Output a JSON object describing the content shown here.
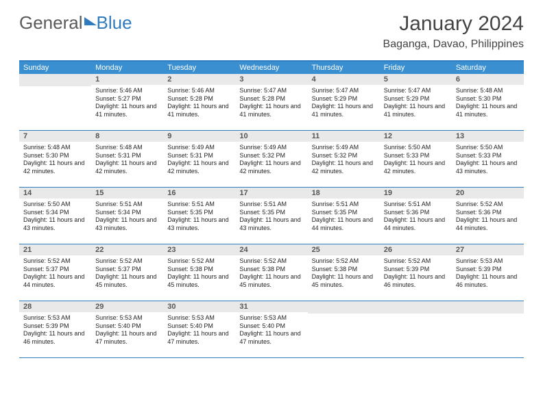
{
  "brand": {
    "part1": "General",
    "part2": "Blue"
  },
  "title": "January 2024",
  "location": "Baganga, Davao, Philippines",
  "daysOfWeek": [
    "Sunday",
    "Monday",
    "Tuesday",
    "Wednesday",
    "Thursday",
    "Friday",
    "Saturday"
  ],
  "colors": {
    "headerBar": "#3a8fd0",
    "ruleLine": "#2f7bbf",
    "dayNumBg": "#e9e9e9",
    "textDark": "#222222"
  },
  "weeks": [
    [
      {
        "n": "",
        "sunrise": "",
        "sunset": "",
        "daylight": ""
      },
      {
        "n": "1",
        "sunrise": "Sunrise: 5:46 AM",
        "sunset": "Sunset: 5:27 PM",
        "daylight": "Daylight: 11 hours and 41 minutes."
      },
      {
        "n": "2",
        "sunrise": "Sunrise: 5:46 AM",
        "sunset": "Sunset: 5:28 PM",
        "daylight": "Daylight: 11 hours and 41 minutes."
      },
      {
        "n": "3",
        "sunrise": "Sunrise: 5:47 AM",
        "sunset": "Sunset: 5:28 PM",
        "daylight": "Daylight: 11 hours and 41 minutes."
      },
      {
        "n": "4",
        "sunrise": "Sunrise: 5:47 AM",
        "sunset": "Sunset: 5:29 PM",
        "daylight": "Daylight: 11 hours and 41 minutes."
      },
      {
        "n": "5",
        "sunrise": "Sunrise: 5:47 AM",
        "sunset": "Sunset: 5:29 PM",
        "daylight": "Daylight: 11 hours and 41 minutes."
      },
      {
        "n": "6",
        "sunrise": "Sunrise: 5:48 AM",
        "sunset": "Sunset: 5:30 PM",
        "daylight": "Daylight: 11 hours and 41 minutes."
      }
    ],
    [
      {
        "n": "7",
        "sunrise": "Sunrise: 5:48 AM",
        "sunset": "Sunset: 5:30 PM",
        "daylight": "Daylight: 11 hours and 42 minutes."
      },
      {
        "n": "8",
        "sunrise": "Sunrise: 5:48 AM",
        "sunset": "Sunset: 5:31 PM",
        "daylight": "Daylight: 11 hours and 42 minutes."
      },
      {
        "n": "9",
        "sunrise": "Sunrise: 5:49 AM",
        "sunset": "Sunset: 5:31 PM",
        "daylight": "Daylight: 11 hours and 42 minutes."
      },
      {
        "n": "10",
        "sunrise": "Sunrise: 5:49 AM",
        "sunset": "Sunset: 5:32 PM",
        "daylight": "Daylight: 11 hours and 42 minutes."
      },
      {
        "n": "11",
        "sunrise": "Sunrise: 5:49 AM",
        "sunset": "Sunset: 5:32 PM",
        "daylight": "Daylight: 11 hours and 42 minutes."
      },
      {
        "n": "12",
        "sunrise": "Sunrise: 5:50 AM",
        "sunset": "Sunset: 5:33 PM",
        "daylight": "Daylight: 11 hours and 42 minutes."
      },
      {
        "n": "13",
        "sunrise": "Sunrise: 5:50 AM",
        "sunset": "Sunset: 5:33 PM",
        "daylight": "Daylight: 11 hours and 43 minutes."
      }
    ],
    [
      {
        "n": "14",
        "sunrise": "Sunrise: 5:50 AM",
        "sunset": "Sunset: 5:34 PM",
        "daylight": "Daylight: 11 hours and 43 minutes."
      },
      {
        "n": "15",
        "sunrise": "Sunrise: 5:51 AM",
        "sunset": "Sunset: 5:34 PM",
        "daylight": "Daylight: 11 hours and 43 minutes."
      },
      {
        "n": "16",
        "sunrise": "Sunrise: 5:51 AM",
        "sunset": "Sunset: 5:35 PM",
        "daylight": "Daylight: 11 hours and 43 minutes."
      },
      {
        "n": "17",
        "sunrise": "Sunrise: 5:51 AM",
        "sunset": "Sunset: 5:35 PM",
        "daylight": "Daylight: 11 hours and 43 minutes."
      },
      {
        "n": "18",
        "sunrise": "Sunrise: 5:51 AM",
        "sunset": "Sunset: 5:35 PM",
        "daylight": "Daylight: 11 hours and 44 minutes."
      },
      {
        "n": "19",
        "sunrise": "Sunrise: 5:51 AM",
        "sunset": "Sunset: 5:36 PM",
        "daylight": "Daylight: 11 hours and 44 minutes."
      },
      {
        "n": "20",
        "sunrise": "Sunrise: 5:52 AM",
        "sunset": "Sunset: 5:36 PM",
        "daylight": "Daylight: 11 hours and 44 minutes."
      }
    ],
    [
      {
        "n": "21",
        "sunrise": "Sunrise: 5:52 AM",
        "sunset": "Sunset: 5:37 PM",
        "daylight": "Daylight: 11 hours and 44 minutes."
      },
      {
        "n": "22",
        "sunrise": "Sunrise: 5:52 AM",
        "sunset": "Sunset: 5:37 PM",
        "daylight": "Daylight: 11 hours and 45 minutes."
      },
      {
        "n": "23",
        "sunrise": "Sunrise: 5:52 AM",
        "sunset": "Sunset: 5:38 PM",
        "daylight": "Daylight: 11 hours and 45 minutes."
      },
      {
        "n": "24",
        "sunrise": "Sunrise: 5:52 AM",
        "sunset": "Sunset: 5:38 PM",
        "daylight": "Daylight: 11 hours and 45 minutes."
      },
      {
        "n": "25",
        "sunrise": "Sunrise: 5:52 AM",
        "sunset": "Sunset: 5:38 PM",
        "daylight": "Daylight: 11 hours and 45 minutes."
      },
      {
        "n": "26",
        "sunrise": "Sunrise: 5:52 AM",
        "sunset": "Sunset: 5:39 PM",
        "daylight": "Daylight: 11 hours and 46 minutes."
      },
      {
        "n": "27",
        "sunrise": "Sunrise: 5:53 AM",
        "sunset": "Sunset: 5:39 PM",
        "daylight": "Daylight: 11 hours and 46 minutes."
      }
    ],
    [
      {
        "n": "28",
        "sunrise": "Sunrise: 5:53 AM",
        "sunset": "Sunset: 5:39 PM",
        "daylight": "Daylight: 11 hours and 46 minutes."
      },
      {
        "n": "29",
        "sunrise": "Sunrise: 5:53 AM",
        "sunset": "Sunset: 5:40 PM",
        "daylight": "Daylight: 11 hours and 47 minutes."
      },
      {
        "n": "30",
        "sunrise": "Sunrise: 5:53 AM",
        "sunset": "Sunset: 5:40 PM",
        "daylight": "Daylight: 11 hours and 47 minutes."
      },
      {
        "n": "31",
        "sunrise": "Sunrise: 5:53 AM",
        "sunset": "Sunset: 5:40 PM",
        "daylight": "Daylight: 11 hours and 47 minutes."
      },
      {
        "n": "",
        "sunrise": "",
        "sunset": "",
        "daylight": ""
      },
      {
        "n": "",
        "sunrise": "",
        "sunset": "",
        "daylight": ""
      },
      {
        "n": "",
        "sunrise": "",
        "sunset": "",
        "daylight": ""
      }
    ]
  ]
}
